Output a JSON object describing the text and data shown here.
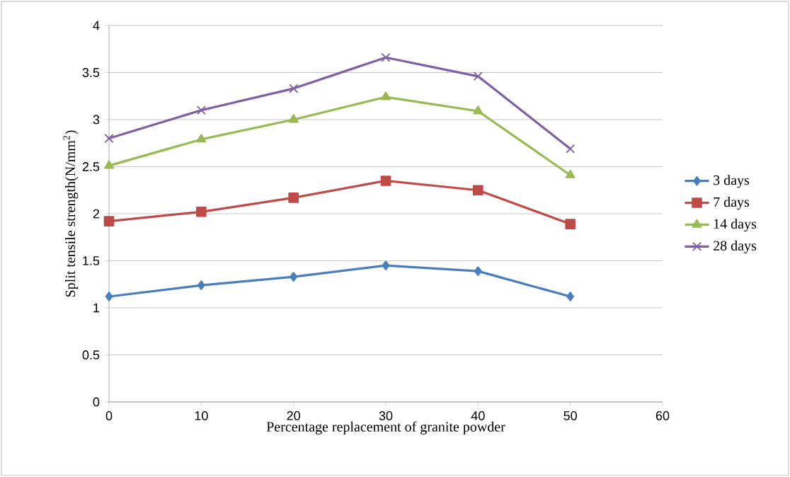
{
  "chart_data": {
    "type": "line",
    "xlabel": "Percentage replacement of granite powder",
    "ylabel": "Split tensile strength(N/mm$^{2}$)",
    "x": [
      0,
      10,
      20,
      30,
      40,
      50
    ],
    "series": [
      {
        "name": "3 days",
        "color": "#4a7ebb",
        "marker": "diamond",
        "values": [
          1.12,
          1.24,
          1.33,
          1.45,
          1.39,
          1.12
        ]
      },
      {
        "name": "7 days",
        "color": "#be4b48",
        "marker": "square",
        "values": [
          1.92,
          2.02,
          2.17,
          2.35,
          2.25,
          1.89
        ]
      },
      {
        "name": "14 days",
        "color": "#98b954",
        "marker": "triangle",
        "values": [
          2.51,
          2.79,
          3.0,
          3.24,
          3.09,
          2.41
        ]
      },
      {
        "name": "28 days",
        "color": "#7d60a0",
        "marker": "cross",
        "values": [
          2.8,
          3.1,
          3.33,
          3.66,
          3.46,
          2.69
        ]
      }
    ],
    "xlim": [
      0,
      60
    ],
    "xticks": [
      0,
      10,
      20,
      30,
      40,
      50,
      60
    ],
    "ylim": [
      0,
      4
    ],
    "yticks": [
      0,
      0.5,
      1,
      1.5,
      2,
      2.5,
      3,
      3.5,
      4
    ],
    "grid": "y",
    "legend": "right",
    "line_style": "solid"
  }
}
